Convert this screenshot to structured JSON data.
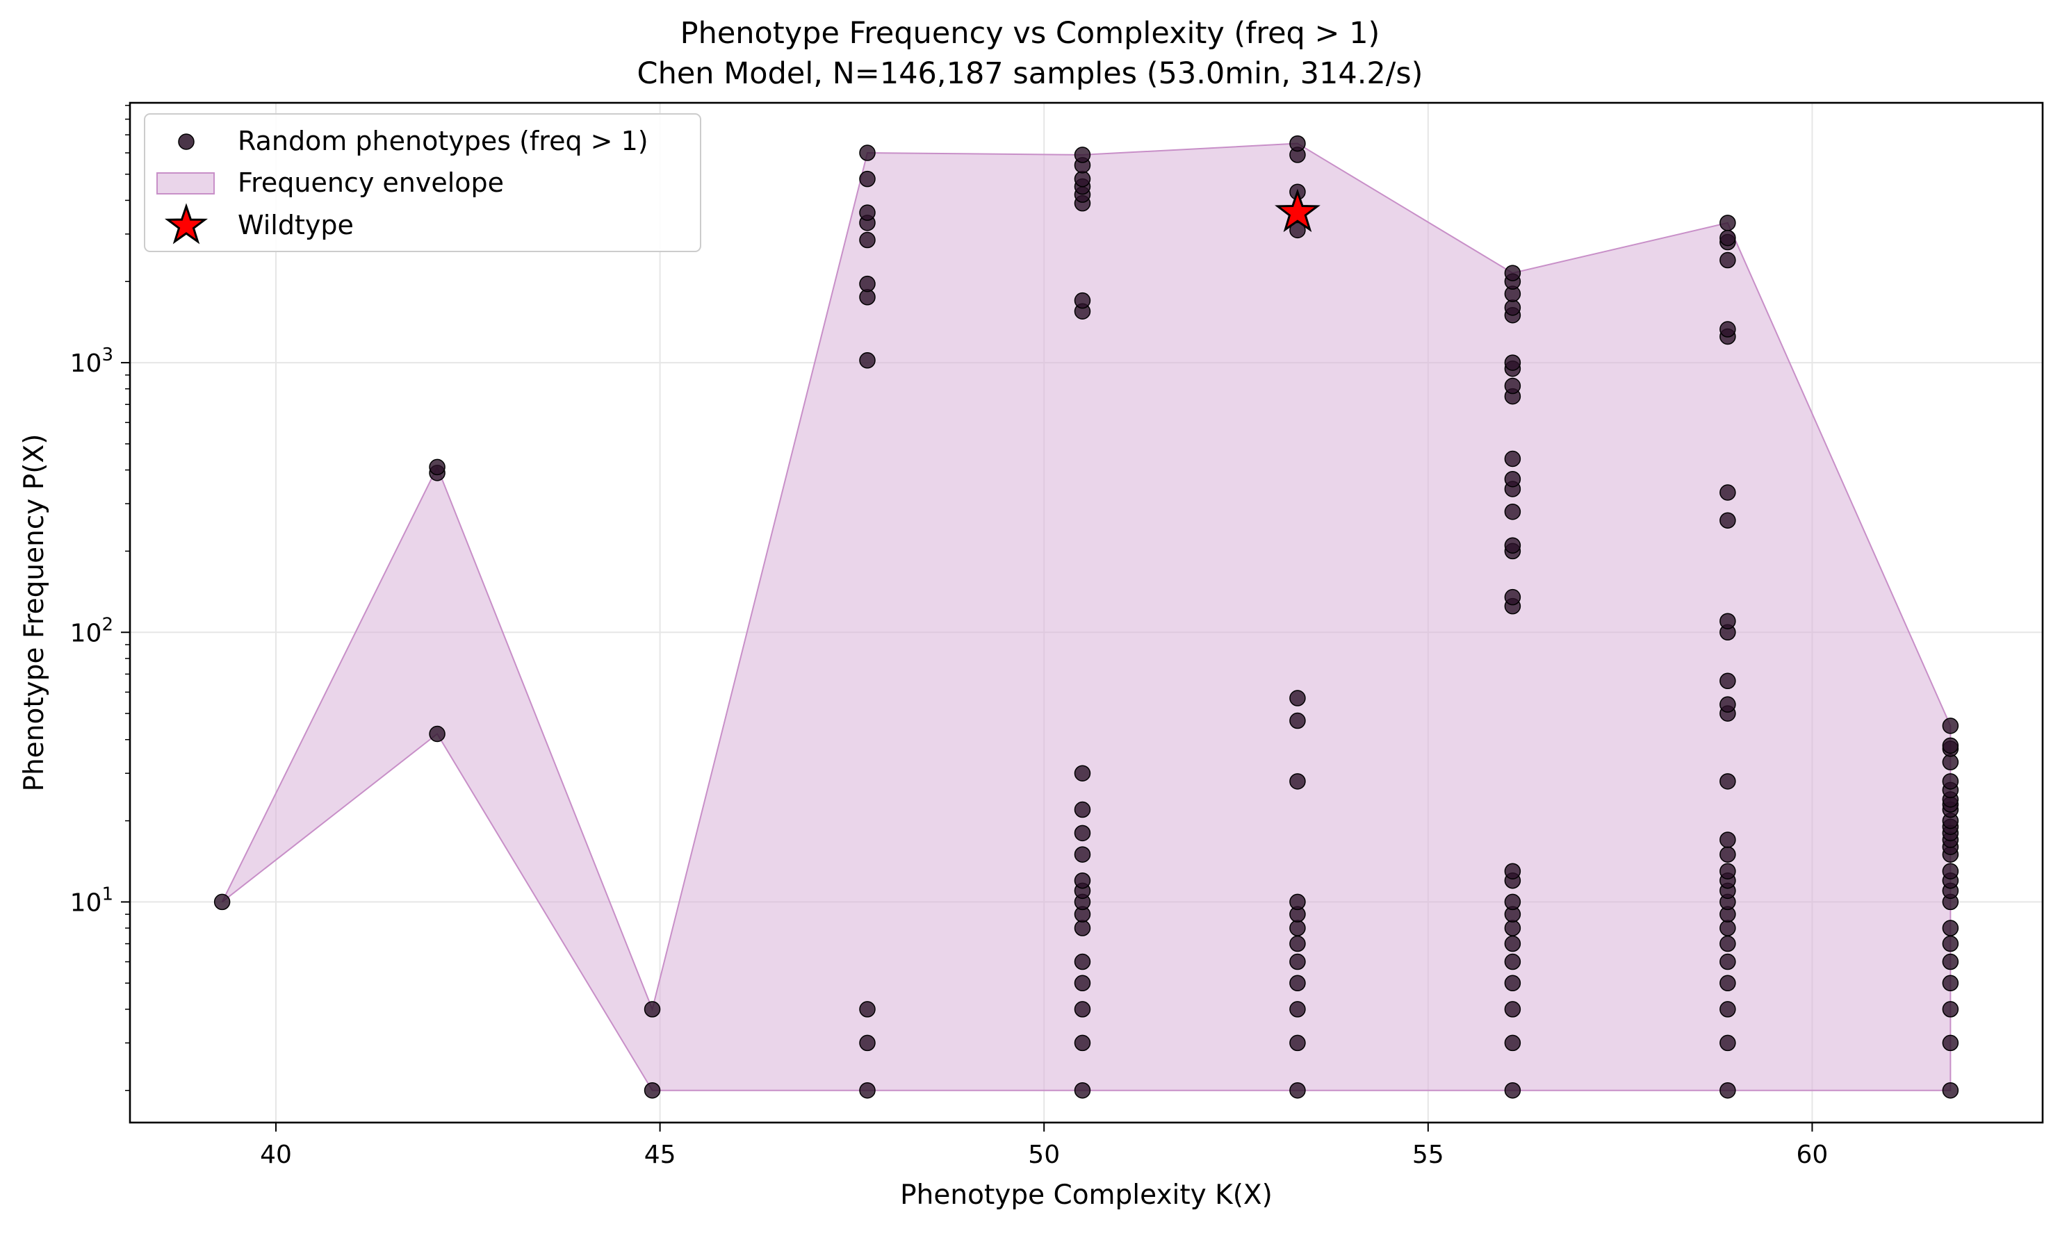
{
  "chart_data": {
    "type": "scatter",
    "title": "Phenotype Frequency vs Complexity (freq > 1)",
    "subtitle": "Chen Model, N=146,187 samples (53.0min, 314.2/s)",
    "xlabel": "Phenotype Complexity K(X)",
    "ylabel": "Phenotype Frequency P(X)",
    "xlim": [
      38.1,
      63.0
    ],
    "ylim": [
      1.52,
      9200
    ],
    "yscale": "log",
    "grid": true,
    "legend_position": "upper-left",
    "x_ticks": [
      {
        "value": 40,
        "label": "40"
      },
      {
        "value": 45,
        "label": "45"
      },
      {
        "value": 50,
        "label": "50"
      },
      {
        "value": 55,
        "label": "55"
      },
      {
        "value": 60,
        "label": "60"
      }
    ],
    "y_ticks": [
      {
        "value": 10,
        "base": "10",
        "exp": "1"
      },
      {
        "value": 100,
        "base": "10",
        "exp": "2"
      },
      {
        "value": 1000,
        "base": "10",
        "exp": "3"
      }
    ],
    "legend": [
      {
        "key": "scatter",
        "label": "Random phenotypes (freq > 1)"
      },
      {
        "key": "envelope",
        "label": "Frequency envelope"
      },
      {
        "key": "wildtype",
        "label": "Wildtype"
      }
    ],
    "colors": {
      "points": "#2a1228",
      "point_edge": "#000000",
      "envelope_fill": "#d8b3d8",
      "envelope_edge": "#c88fc8",
      "wildtype": "#ff0000",
      "grid": "#e6e6e6"
    },
    "envelope": {
      "x": [
        39.3,
        42.1,
        44.9,
        47.7,
        50.5,
        53.3,
        56.1,
        58.9,
        61.8
      ],
      "upper": [
        10,
        410,
        4,
        6000,
        5900,
        6500,
        2150,
        3300,
        45
      ],
      "lower": [
        10,
        42,
        2,
        2,
        2,
        2,
        2,
        2,
        2
      ]
    },
    "series": [
      {
        "name": "Random phenotypes (freq > 1)",
        "points": [
          {
            "x": 39.3,
            "ys": [
              10
            ]
          },
          {
            "x": 42.1,
            "ys": [
              42,
              390,
              410
            ]
          },
          {
            "x": 44.9,
            "ys": [
              2,
              4
            ]
          },
          {
            "x": 47.7,
            "ys": [
              2,
              3,
              4,
              1020,
              1750,
              1960,
              2850,
              3300,
              3600,
              4800,
              6000
            ]
          },
          {
            "x": 50.5,
            "ys": [
              2,
              3,
              4,
              5,
              6,
              8,
              9,
              10,
              11,
              12,
              15,
              18,
              22,
              30,
              1550,
              1700,
              3900,
              4200,
              4500,
              4800,
              5400,
              5900
            ]
          },
          {
            "x": 53.3,
            "ys": [
              2,
              3,
              4,
              5,
              6,
              7,
              8,
              9,
              10,
              28,
              47,
              57,
              3100,
              4300,
              5900,
              6500
            ]
          },
          {
            "x": 56.1,
            "ys": [
              2,
              3,
              4,
              5,
              6,
              7,
              8,
              9,
              10,
              12,
              13,
              125,
              135,
              200,
              210,
              280,
              340,
              370,
              440,
              750,
              820,
              950,
              1000,
              1500,
              1600,
              1800,
              2000,
              2150
            ]
          },
          {
            "x": 58.9,
            "ys": [
              2,
              3,
              4,
              5,
              6,
              7,
              8,
              9,
              10,
              11,
              12,
              13,
              15,
              17,
              28,
              50,
              54,
              66,
              100,
              110,
              260,
              330,
              1250,
              1330,
              2400,
              2800,
              2900,
              3300
            ]
          },
          {
            "x": 61.8,
            "ys": [
              2,
              3,
              4,
              5,
              6,
              7,
              8,
              10,
              11,
              12,
              13,
              15,
              16,
              17,
              18,
              19,
              20,
              22,
              23,
              24,
              26,
              28,
              33,
              37,
              38,
              45
            ]
          }
        ]
      },
      {
        "name": "Wildtype",
        "points": [
          {
            "x": 53.3,
            "y": 3600
          }
        ]
      }
    ]
  }
}
